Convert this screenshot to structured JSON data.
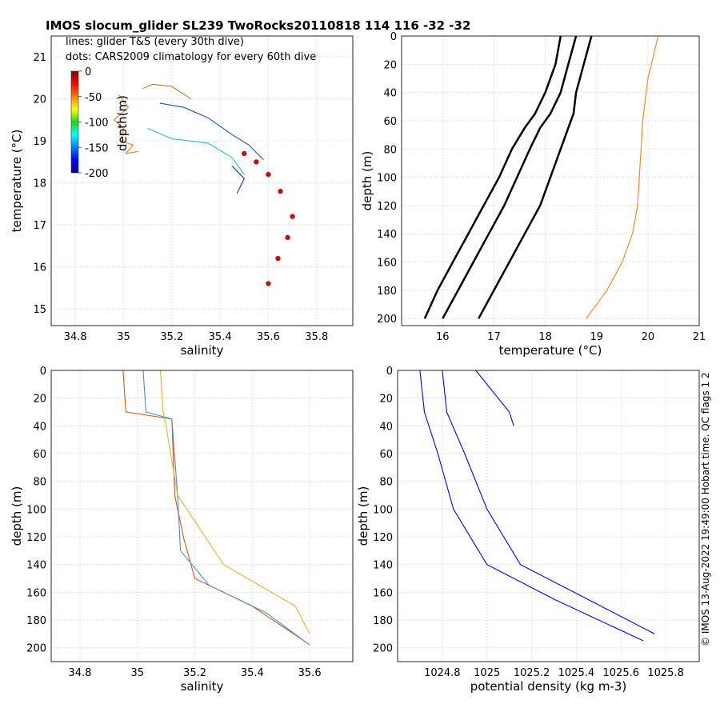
{
  "chart_data": [
    {
      "type": "scatter",
      "title": "IMOS slocum_glider SL239 TwoRocks20110818 114  116  -32  -32",
      "legend_lines": [
        "lines: glider T&S (every 30th dive)",
        "dots: CARS2009 climatology for every 60th dive"
      ],
      "xlabel": "salinity",
      "ylabel": "temperature (°C)",
      "xlim": [
        34.7,
        35.95
      ],
      "ylim": [
        14.6,
        21.5
      ],
      "xticks": [
        "34.8",
        "35",
        "35.2",
        "35.4",
        "35.6",
        "35.8"
      ],
      "yticks": [
        "15",
        "16",
        "17",
        "18",
        "19",
        "20",
        "21"
      ],
      "grid": true,
      "colorbar": {
        "label": "depth(m)",
        "ticks": [
          "0",
          "-50",
          "-100",
          "-150",
          "-200"
        ],
        "range": [
          -200,
          0
        ],
        "colormap": "jet"
      },
      "series": [
        {
          "name": "glider-shallow-orange",
          "color": "#e87d1c",
          "x": [
            34.98,
            35.02,
            34.96,
            35.0,
            34.99,
            35.04,
            35.01,
            35.06
          ],
          "y": [
            20.1,
            19.8,
            19.5,
            19.3,
            19.0,
            18.9,
            18.7,
            18.75
          ]
        },
        {
          "name": "glider-top",
          "color": "#c07020",
          "x": [
            35.08,
            35.12,
            35.2,
            35.28
          ],
          "y": [
            20.25,
            20.35,
            20.3,
            20.0
          ]
        },
        {
          "name": "glider-main",
          "color": "#2050c0",
          "x": [
            35.15,
            35.25,
            35.35,
            35.45,
            35.52,
            35.58
          ],
          "y": [
            19.9,
            19.8,
            19.55,
            19.15,
            18.9,
            18.55
          ]
        },
        {
          "name": "glider-mid-cyan",
          "color": "#20c0c0",
          "x": [
            35.1,
            35.2,
            35.35,
            35.45,
            35.5
          ],
          "y": [
            19.3,
            19.05,
            18.95,
            18.6,
            18.2
          ]
        },
        {
          "name": "glider-low-blue",
          "color": "#1030a0",
          "x": [
            35.45,
            35.5,
            35.47
          ],
          "y": [
            18.4,
            18.1,
            17.75
          ]
        },
        {
          "name": "cars-climatology-dots",
          "color": "#c01010",
          "x": [
            35.5,
            35.55,
            35.6,
            35.65,
            35.7,
            35.68,
            35.64,
            35.6
          ],
          "y": [
            18.7,
            18.5,
            18.2,
            17.8,
            17.2,
            16.7,
            16.2,
            15.6
          ]
        }
      ]
    },
    {
      "type": "line",
      "xlabel": "temperature (°C)",
      "ylabel": "depth (m)",
      "xlim": [
        15.2,
        21
      ],
      "ylim": [
        0,
        205
      ],
      "xticks": [
        "16",
        "17",
        "18",
        "19",
        "20",
        "21"
      ],
      "yticks": [
        "0",
        "20",
        "40",
        "60",
        "80",
        "100",
        "120",
        "140",
        "160",
        "180",
        "200"
      ],
      "grid": true,
      "series": [
        {
          "name": "cars-profile-warm",
          "color": "#000000",
          "x": [
            18.9,
            18.75,
            18.6,
            18.55,
            18.45,
            18.3,
            18.1,
            17.9,
            17.6,
            17.3,
            17.0,
            16.7
          ],
          "y": [
            0,
            20,
            40,
            55,
            65,
            80,
            100,
            120,
            140,
            160,
            180,
            200
          ]
        },
        {
          "name": "cars-profile-mid",
          "color": "#000000",
          "x": [
            18.6,
            18.45,
            18.3,
            18.1,
            17.9,
            17.7,
            17.45,
            17.2,
            16.9,
            16.6,
            16.3,
            16.0
          ],
          "y": [
            0,
            20,
            40,
            55,
            65,
            80,
            100,
            120,
            140,
            160,
            180,
            200
          ]
        },
        {
          "name": "cars-profile-cool",
          "color": "#000000",
          "x": [
            18.3,
            18.2,
            18.0,
            17.8,
            17.6,
            17.35,
            17.1,
            16.8,
            16.5,
            16.2,
            15.9,
            15.65
          ],
          "y": [
            0,
            20,
            40,
            55,
            65,
            80,
            100,
            120,
            140,
            160,
            180,
            200
          ]
        },
        {
          "name": "glider-dives",
          "color": "#ff7f0e",
          "x": [
            20.2,
            20.0,
            19.9,
            19.85,
            19.8,
            19.7,
            19.5,
            19.2,
            18.8
          ],
          "y": [
            0,
            30,
            60,
            90,
            120,
            140,
            160,
            180,
            200
          ]
        }
      ]
    },
    {
      "type": "line",
      "xlabel": "salinity",
      "ylabel": "depth (m)",
      "xlim": [
        34.7,
        35.75
      ],
      "ylim": [
        0,
        210
      ],
      "xticks": [
        "34.8",
        "35",
        "35.2",
        "35.4",
        "35.6"
      ],
      "yticks": [
        "0",
        "20",
        "40",
        "60",
        "80",
        "100",
        "120",
        "140",
        "160",
        "180",
        "200"
      ],
      "grid": true,
      "series": [
        {
          "name": "glider-dive-a",
          "color": "#d9541a",
          "x": [
            34.95,
            34.96,
            35.12,
            35.13,
            35.16,
            35.2,
            35.4,
            35.58
          ],
          "y": [
            0,
            30,
            35,
            90,
            120,
            150,
            170,
            195
          ]
        },
        {
          "name": "glider-dive-b",
          "color": "#4d8cc8",
          "x": [
            35.02,
            35.03,
            35.12,
            35.14,
            35.15,
            35.25,
            35.45,
            35.6
          ],
          "y": [
            0,
            30,
            35,
            90,
            130,
            155,
            175,
            198
          ]
        },
        {
          "name": "glider-dive-c",
          "color": "#edb020",
          "x": [
            35.08,
            35.09,
            35.1,
            35.14,
            35.3,
            35.55,
            35.6
          ],
          "y": [
            0,
            30,
            40,
            90,
            140,
            170,
            190
          ]
        }
      ]
    },
    {
      "type": "line",
      "xlabel": "potential density (kg m-3)",
      "ylabel": "depth (m)",
      "xlim": [
        1024.6,
        1025.95
      ],
      "ylim": [
        0,
        210
      ],
      "xticks": [
        "1024.8",
        "1025",
        "1025.2",
        "1025.4",
        "1025.6",
        "1025.8"
      ],
      "yticks": [
        "0",
        "20",
        "40",
        "60",
        "80",
        "100",
        "120",
        "140",
        "160",
        "180",
        "200"
      ],
      "grid": true,
      "series": [
        {
          "name": "glider-density-a",
          "color": "#0000ff",
          "x": [
            1024.7,
            1024.72,
            1024.78,
            1024.85,
            1025.0,
            1025.3,
            1025.7
          ],
          "y": [
            0,
            30,
            60,
            100,
            140,
            165,
            195
          ]
        },
        {
          "name": "glider-density-b",
          "color": "#0000ff",
          "x": [
            1024.8,
            1024.82,
            1024.9,
            1025.0,
            1025.15,
            1025.45,
            1025.75
          ],
          "y": [
            0,
            30,
            60,
            100,
            140,
            165,
            190
          ]
        },
        {
          "name": "glider-density-c",
          "color": "#0000ff",
          "x": [
            1024.95,
            1025.1,
            1025.12
          ],
          "y": [
            0,
            30,
            40
          ]
        }
      ]
    }
  ],
  "credit": "© IMOS 13-Aug-2022 19:49:00 Hobart time. QC flags 1  2"
}
